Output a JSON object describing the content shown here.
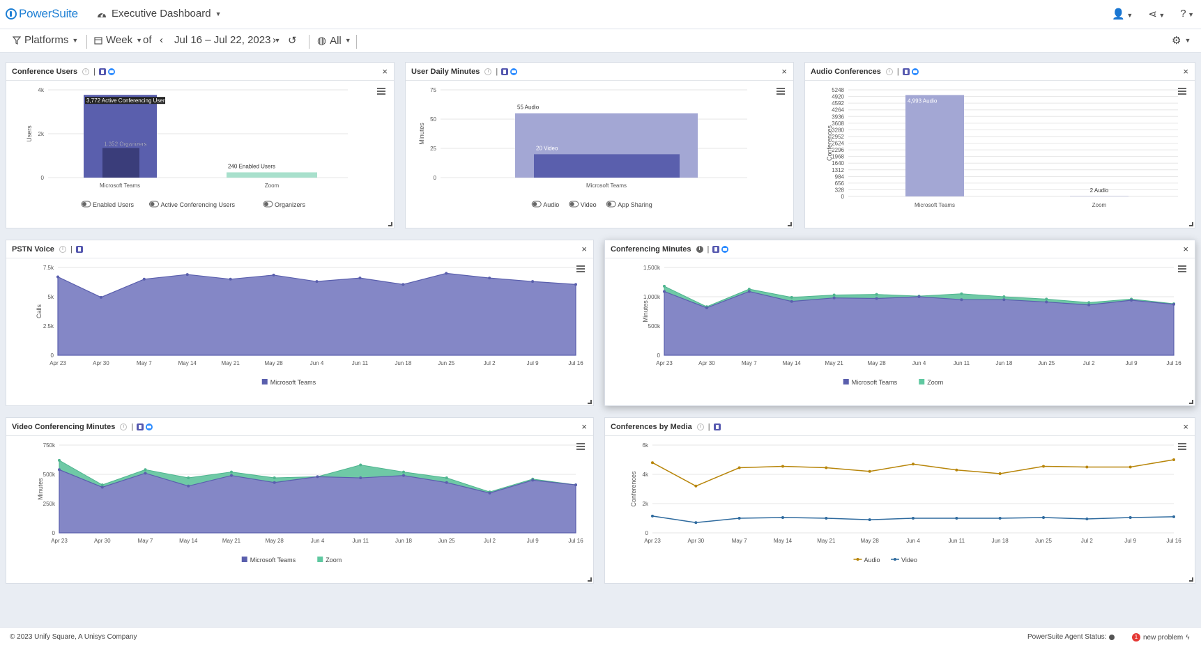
{
  "app": {
    "name": "PowerSuite",
    "dashboard_title": "Executive Dashboard"
  },
  "toolbar": {
    "platforms": "Platforms",
    "period": "Week",
    "of": "of",
    "date_range": "Jul 16 – Jul 22, 2023",
    "scope": "All"
  },
  "common": {
    "close": "×"
  },
  "icons": {
    "logo": "powersuite-logo",
    "gauge": "gauge-icon",
    "filter": "filter-icon",
    "calendar": "calendar-icon",
    "history": "history-icon",
    "globe": "globe-icon",
    "gear": "gear-icon",
    "user": "user-icon",
    "share": "share-icon",
    "help": "help-icon",
    "teams": "teams-icon",
    "zoom": "zoom-icon"
  },
  "colors": {
    "brand": "#1e7fd4",
    "teams": "#6e72b8",
    "teams_dark": "#5a5fad",
    "zoom": "#5fc8a0",
    "audio_line": "#b8860b",
    "video_line": "#2e6a9e"
  },
  "panels": {
    "conference_users": {
      "title": "Conference Users",
      "chart_data": {
        "type": "bar",
        "categories": [
          "Microsoft Teams",
          "Zoom"
        ],
        "series": [
          {
            "name": "Enabled Users",
            "values": [
              null,
              240
            ]
          },
          {
            "name": "Active Conferencing Users",
            "values": [
              3772,
              null
            ]
          },
          {
            "name": "Organizers",
            "values": [
              1352,
              null
            ]
          }
        ],
        "data_labels": [
          "3,772 Active Conferencing Users",
          "1,352 Organizers",
          "240 Enabled Users"
        ],
        "ylabel": "Users",
        "yticks": [
          "4k",
          "2k",
          "0"
        ],
        "ylim": [
          0,
          4000
        ],
        "legend": [
          "Enabled Users",
          "Active Conferencing Users",
          "Organizers"
        ]
      }
    },
    "user_daily_minutes": {
      "title": "User Daily Minutes",
      "chart_data": {
        "type": "bar",
        "categories": [
          "Microsoft Teams"
        ],
        "series": [
          {
            "name": "Audio",
            "values": [
              55
            ]
          },
          {
            "name": "Video",
            "values": [
              20
            ]
          },
          {
            "name": "App Sharing",
            "values": [
              null
            ]
          }
        ],
        "data_labels": [
          "55 Audio",
          "20 Video"
        ],
        "ylabel": "Minutes",
        "yticks": [
          "75",
          "50",
          "25",
          "0"
        ],
        "ylim": [
          0,
          75
        ],
        "legend": [
          "Audio",
          "Video",
          "App Sharing"
        ]
      }
    },
    "audio_conferences": {
      "title": "Audio Conferences",
      "chart_data": {
        "type": "bar",
        "categories": [
          "Microsoft Teams",
          "Zoom"
        ],
        "series": [
          {
            "name": "Audio",
            "values": [
              4993,
              2
            ]
          }
        ],
        "data_labels": [
          "4,993 Audio",
          "2 Audio"
        ],
        "ylabel": "Conferences",
        "yticks": [
          "5248",
          "4920",
          "4592",
          "4264",
          "3936",
          "3608",
          "3280",
          "2952",
          "2624",
          "2296",
          "1968",
          "1640",
          "1312",
          "984",
          "656",
          "328",
          "0"
        ],
        "ylim": [
          0,
          5248
        ]
      }
    },
    "pstn_voice": {
      "title": "PSTN Voice",
      "chart_data": {
        "type": "area",
        "x": [
          "Apr 23",
          "Apr 30",
          "May 7",
          "May 14",
          "May 21",
          "May 28",
          "Jun 4",
          "Jun 11",
          "Jun 18",
          "Jun 25",
          "Jul 2",
          "Jul 9",
          "Jul 16"
        ],
        "series": [
          {
            "name": "Microsoft Teams",
            "values": [
              6700,
              4950,
              6500,
              6900,
              6500,
              6850,
              6300,
              6600,
              6050,
              7000,
              6600,
              6300,
              6050
            ]
          }
        ],
        "ylabel": "Calls",
        "yticks": [
          "7.5k",
          "5k",
          "2.5k",
          "0"
        ],
        "ylim": [
          0,
          7500
        ],
        "legend": [
          "Microsoft Teams"
        ]
      }
    },
    "conferencing_minutes": {
      "title": "Conferencing Minutes",
      "chart_data": {
        "type": "area",
        "x": [
          "Apr 23",
          "Apr 30",
          "May 7",
          "May 14",
          "May 21",
          "May 28",
          "Jun 4",
          "Jun 11",
          "Jun 18",
          "Jun 25",
          "Jul 2",
          "Jul 9",
          "Jul 16"
        ],
        "series": [
          {
            "name": "Microsoft Teams",
            "values": [
              1090000,
              810000,
              1090000,
              920000,
              980000,
              970000,
              1000000,
              950000,
              950000,
              910000,
              860000,
              940000,
              870000
            ]
          },
          {
            "name": "Zoom",
            "values": [
              90000,
              20000,
              40000,
              70000,
              50000,
              70000,
              10000,
              100000,
              50000,
              50000,
              40000,
              20000,
              10000
            ]
          }
        ],
        "ylabel": "Minutes",
        "yticks": [
          "1,500k",
          "1,000k",
          "500k",
          "0"
        ],
        "ylim": [
          0,
          1500000
        ],
        "legend": [
          "Microsoft Teams",
          "Zoom"
        ]
      }
    },
    "video_conferencing_minutes": {
      "title": "Video Conferencing Minutes",
      "chart_data": {
        "type": "area",
        "x": [
          "Apr 23",
          "Apr 30",
          "May 7",
          "May 14",
          "May 21",
          "May 28",
          "Jun 4",
          "Jun 11",
          "Jun 18",
          "Jun 25",
          "Jul 2",
          "Jul 9",
          "Jul 16"
        ],
        "series": [
          {
            "name": "Microsoft Teams",
            "values": [
              540000,
              390000,
              510000,
              400000,
              490000,
              430000,
              480000,
              470000,
              490000,
              430000,
              340000,
              450000,
              410000
            ]
          },
          {
            "name": "Zoom",
            "values": [
              80000,
              20000,
              30000,
              70000,
              30000,
              40000,
              0,
              110000,
              30000,
              40000,
              10000,
              10000,
              0
            ]
          }
        ],
        "ylabel": "Minutes",
        "yticks": [
          "750k",
          "500k",
          "250k",
          "0"
        ],
        "ylim": [
          0,
          750000
        ],
        "legend": [
          "Microsoft Teams",
          "Zoom"
        ]
      }
    },
    "conferences_by_media": {
      "title": "Conferences by Media",
      "chart_data": {
        "type": "line",
        "x": [
          "Apr 23",
          "Apr 30",
          "May 7",
          "May 14",
          "May 21",
          "May 28",
          "Jun 4",
          "Jun 11",
          "Jun 18",
          "Jun 25",
          "Jul 2",
          "Jul 9",
          "Jul 16"
        ],
        "series": [
          {
            "name": "Audio",
            "values": [
              4800,
              3200,
              4450,
              4550,
              4450,
              4200,
              4700,
              4300,
              4050,
              4550,
              4500,
              4500,
              5000
            ]
          },
          {
            "name": "Video",
            "values": [
              1150,
              700,
              1000,
              1050,
              1000,
              900,
              1000,
              1000,
              1000,
              1050,
              950,
              1050,
              1100
            ]
          }
        ],
        "ylabel": "Conferences",
        "yticks": [
          "6k",
          "4k",
          "2k",
          "0"
        ],
        "ylim": [
          0,
          6000
        ],
        "legend": [
          "Audio",
          "Video"
        ]
      }
    }
  },
  "footer": {
    "copyright": "© 2023 Unify Square, A Unisys Company",
    "agent_status": "PowerSuite Agent Status:",
    "problems": "new problem",
    "problem_count": "1"
  }
}
